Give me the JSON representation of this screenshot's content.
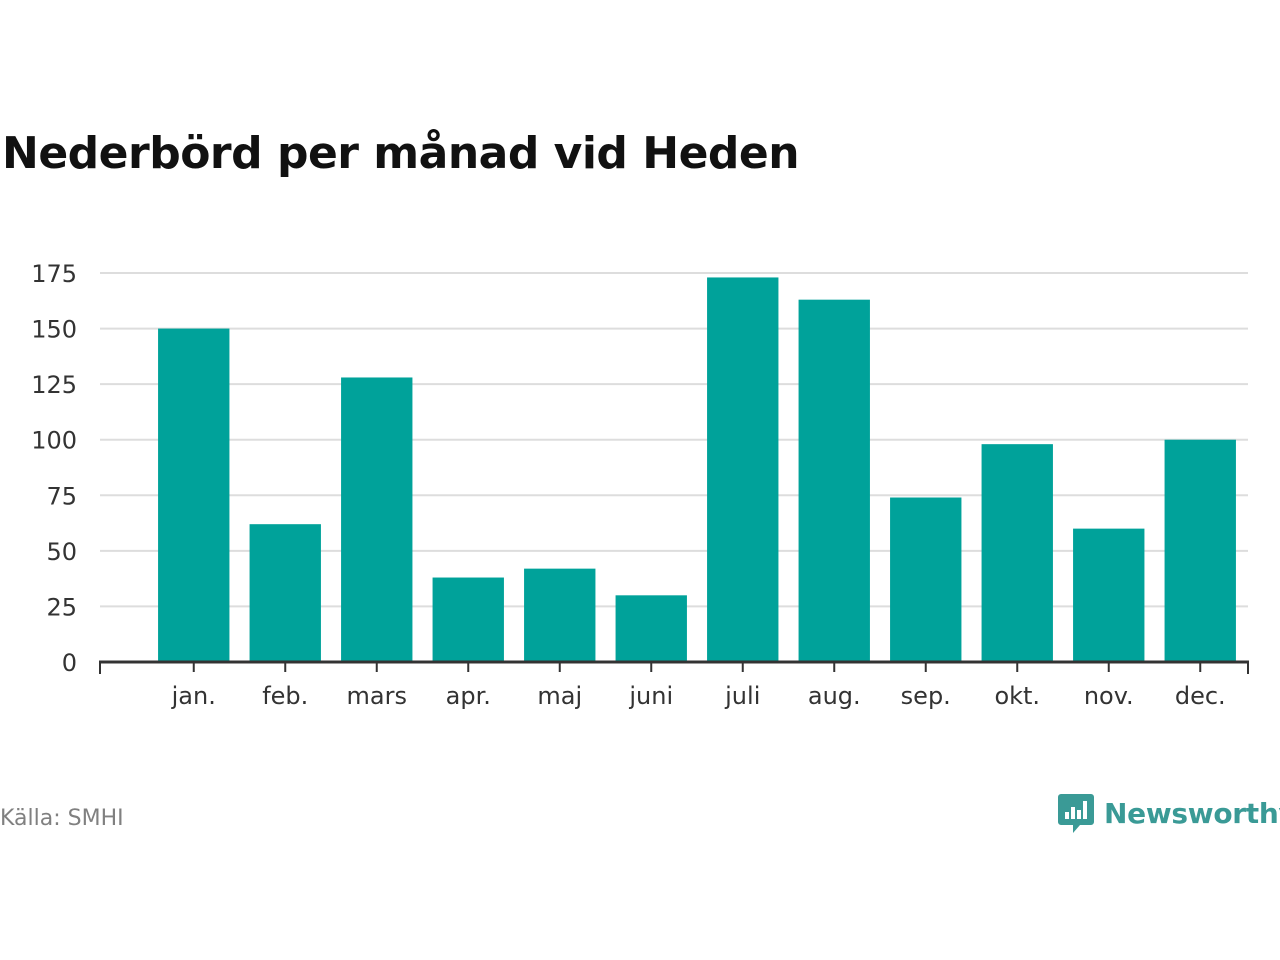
{
  "title": "Nederbörd per månad vid Heden",
  "source": "Källa: SMHI",
  "brand": {
    "name": "Newsworthy",
    "icon": "newsworthy-logo-icon",
    "color": "#3a9a96"
  },
  "colors": {
    "bar": "#00a29a",
    "grid": "#dddddd",
    "axis": "#333333"
  },
  "chart_data": {
    "type": "bar",
    "categories": [
      "jan.",
      "feb.",
      "mars",
      "apr.",
      "maj",
      "juni",
      "juli",
      "aug.",
      "sep.",
      "okt.",
      "nov.",
      "dec."
    ],
    "values": [
      150,
      62,
      128,
      38,
      42,
      30,
      173,
      163,
      74,
      98,
      60,
      100
    ],
    "title": "Nederbörd per månad vid Heden",
    "xlabel": "",
    "ylabel": "",
    "ylim": [
      0,
      175
    ],
    "yticks": [
      0,
      25,
      50,
      75,
      100,
      125,
      150,
      175
    ],
    "grid": true,
    "legend": "none"
  }
}
